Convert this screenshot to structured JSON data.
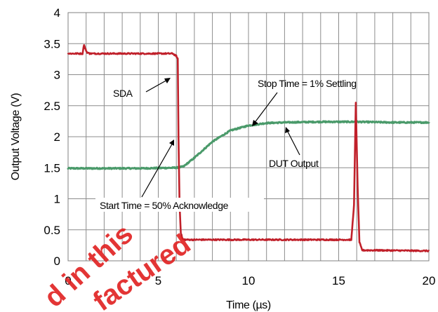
{
  "chart_data": {
    "type": "line",
    "xlabel": "Time (µs)",
    "ylabel": "Output Voltage (V)",
    "xlim": [
      0,
      20
    ],
    "ylim": [
      0,
      4
    ],
    "x_ticks": [
      "0",
      "5",
      "10",
      "15",
      "20"
    ],
    "y_ticks": [
      "0",
      "0.5",
      "1",
      "1.5",
      "2",
      "2.5",
      "3",
      "3.5",
      "4"
    ],
    "grid": true,
    "colors": {
      "sda": "#c0202a",
      "dut": "#4a9a6a"
    },
    "series": [
      {
        "name": "SDA",
        "x": [
          0,
          0.8,
          0.88,
          0.95,
          1.05,
          1.2,
          1.5,
          3,
          5,
          5.8,
          6.0,
          6.08,
          6.12,
          6.18,
          6.25,
          6.35,
          6.5,
          7,
          10,
          13,
          15.7,
          15.85,
          15.95,
          16.05,
          16.15,
          16.3,
          17,
          20
        ],
        "y": [
          3.34,
          3.34,
          3.48,
          3.42,
          3.36,
          3.34,
          3.34,
          3.34,
          3.34,
          3.34,
          3.3,
          3.25,
          2.0,
          0.9,
          0.45,
          0.35,
          0.34,
          0.34,
          0.34,
          0.34,
          0.34,
          0.9,
          2.55,
          1.2,
          0.3,
          0.17,
          0.17,
          0.16
        ]
      },
      {
        "name": "DUT Output",
        "x": [
          0,
          2,
          4,
          6,
          6.4,
          7,
          8,
          9,
          10,
          11,
          12,
          14,
          16,
          18,
          20
        ],
        "y": [
          1.49,
          1.49,
          1.49,
          1.5,
          1.52,
          1.66,
          1.92,
          2.1,
          2.18,
          2.22,
          2.23,
          2.24,
          2.24,
          2.23,
          2.23
        ]
      }
    ],
    "annotations": {
      "sda": "SDA",
      "stop": "Stop Time = 1% Settling",
      "dut": "DUT Output",
      "start": "Start Time = 50% Acknowledge"
    }
  },
  "watermark": {
    "line1": "d in this",
    "line2": "factured"
  }
}
